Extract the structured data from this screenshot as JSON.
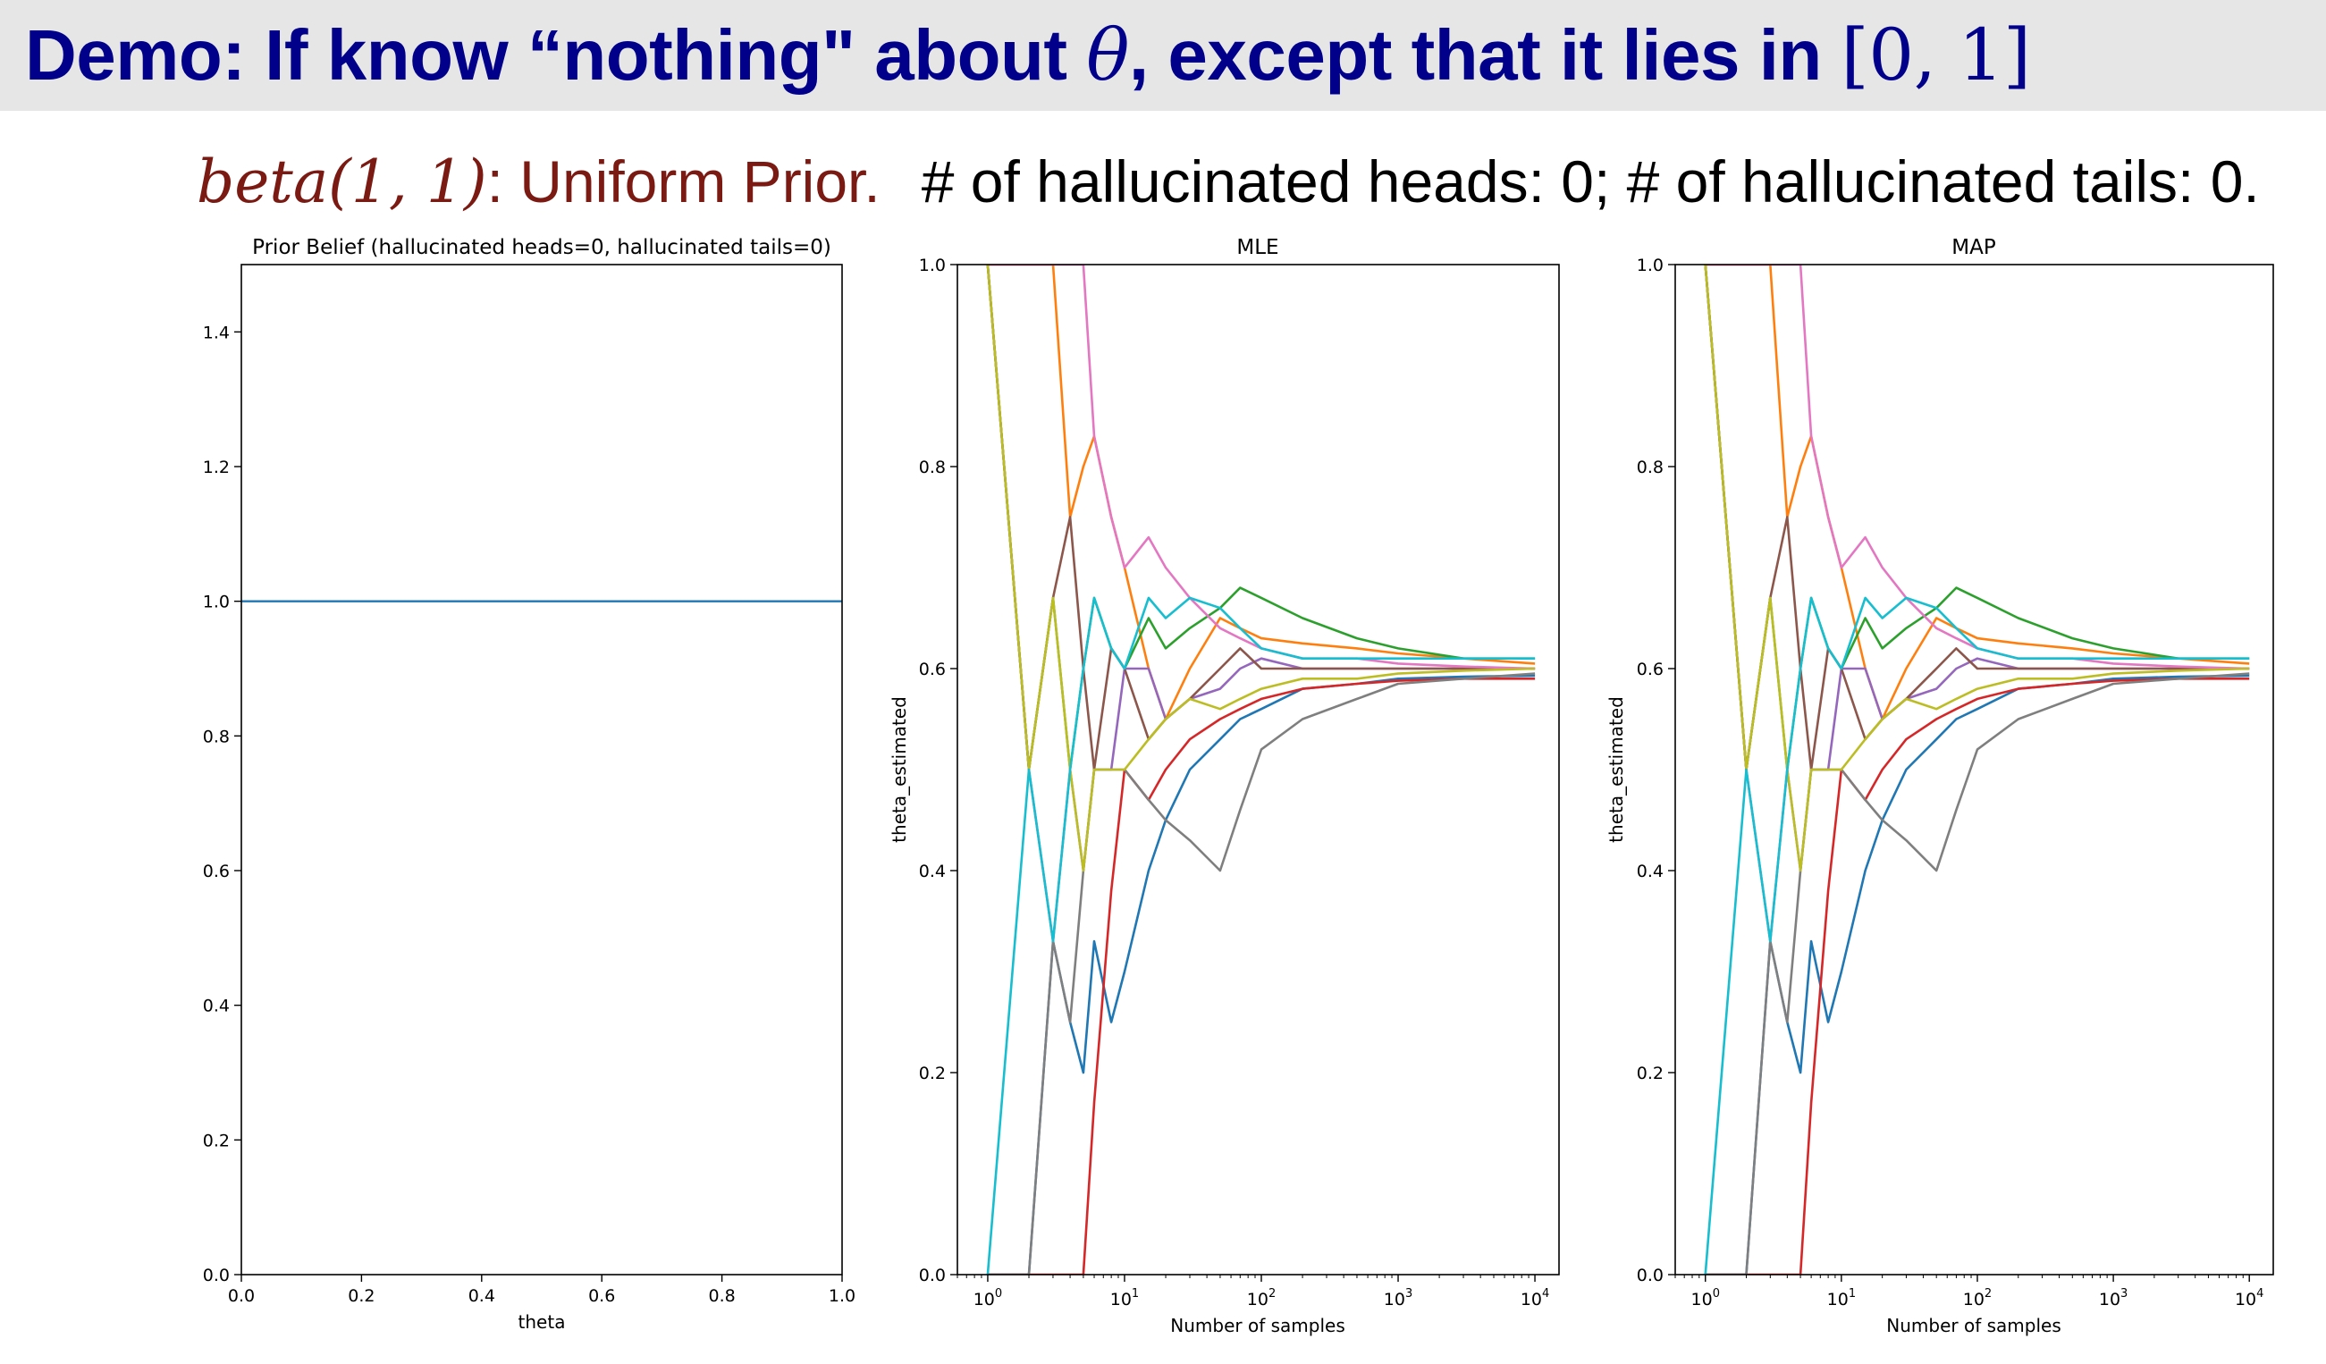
{
  "slide": {
    "title_prefix": "Demo: If know “nothing\" about ",
    "title_theta": "θ",
    "title_middle": ", except that it lies in ",
    "title_interval": "[0, 1]",
    "subtitle_prior_math": "beta(1, 1)",
    "subtitle_prior_text": ": Uniform Prior.",
    "subtitle_counts": "# of hallucinated heads: 0; # of hallucinated tails: 0."
  },
  "colors": {
    "title": "#00008b",
    "prior_text": "#7a1a12",
    "prior_line": "#1f77b4",
    "series_palette": [
      "#1f77b4",
      "#ff7f0e",
      "#2ca02c",
      "#d62728",
      "#9467bd",
      "#8c564b",
      "#e377c2",
      "#7f7f7f",
      "#bcbd22",
      "#17becf"
    ]
  },
  "chart_data": [
    {
      "type": "line",
      "title": "Prior Belief (hallucinated heads=0, hallucinated tails=0)",
      "xlabel": "theta",
      "ylabel": "",
      "xlim": [
        0,
        1
      ],
      "ylim": [
        0,
        1.5
      ],
      "xticks": [
        "0.0",
        "0.2",
        "0.4",
        "0.6",
        "0.8",
        "1.0"
      ],
      "yticks": [
        "0.0",
        "0.2",
        "0.4",
        "0.6",
        "0.8",
        "1.0",
        "1.2",
        "1.4"
      ],
      "grid": false,
      "series": [
        {
          "x": [
            0,
            1
          ],
          "y": [
            1,
            1
          ]
        }
      ]
    },
    {
      "type": "line",
      "title": "MLE",
      "xlabel": "Number of samples",
      "ylabel": "theta_estimated",
      "xscale": "log",
      "xlim": [
        0.6,
        15000
      ],
      "ylim": [
        0,
        1
      ],
      "xticks": [
        "10^0",
        "10^1",
        "10^2",
        "10^3",
        "10^4"
      ],
      "yticks": [
        "0.0",
        "0.2",
        "0.4",
        "0.6",
        "0.8",
        "1.0"
      ],
      "grid": false,
      "x": [
        1,
        2,
        3,
        4,
        5,
        6,
        8,
        10,
        15,
        20,
        30,
        50,
        70,
        100,
        200,
        500,
        1000,
        3000,
        10000
      ],
      "series": [
        {
          "y": [
            0,
            0,
            0.33,
            0.25,
            0.2,
            0.33,
            0.25,
            0.3,
            0.4,
            0.45,
            0.5,
            0.53,
            0.55,
            0.56,
            0.58,
            0.585,
            0.59,
            0.592,
            0.593
          ]
        },
        {
          "y": [
            1,
            1,
            1,
            0.75,
            0.8,
            0.83,
            0.75,
            0.7,
            0.6,
            0.55,
            0.6,
            0.65,
            0.64,
            0.63,
            0.625,
            0.62,
            0.615,
            0.61,
            0.605
          ]
        },
        {
          "y": [
            1,
            0.5,
            0.67,
            0.5,
            0.6,
            0.67,
            0.62,
            0.6,
            0.65,
            0.62,
            0.64,
            0.66,
            0.68,
            0.67,
            0.65,
            0.63,
            0.62,
            0.61,
            0.61
          ]
        },
        {
          "y": [
            0,
            0,
            0,
            0,
            0,
            0.17,
            0.38,
            0.5,
            0.47,
            0.5,
            0.53,
            0.55,
            0.56,
            0.57,
            0.58,
            0.585,
            0.588,
            0.59,
            0.59
          ]
        },
        {
          "y": [
            1,
            0.5,
            0.33,
            0.5,
            0.4,
            0.5,
            0.5,
            0.6,
            0.6,
            0.55,
            0.57,
            0.58,
            0.6,
            0.61,
            0.6,
            0.6,
            0.6,
            0.6,
            0.6
          ]
        },
        {
          "y": [
            1,
            0.5,
            0.67,
            0.75,
            0.6,
            0.5,
            0.62,
            0.6,
            0.53,
            0.55,
            0.57,
            0.6,
            0.62,
            0.6,
            0.6,
            0.6,
            0.6,
            0.6,
            0.6
          ]
        },
        {
          "y": [
            1,
            1,
            1,
            1,
            1,
            0.83,
            0.75,
            0.7,
            0.73,
            0.7,
            0.67,
            0.64,
            0.63,
            0.62,
            0.61,
            0.61,
            0.605,
            0.602,
            0.6
          ]
        },
        {
          "y": [
            0,
            0,
            0.33,
            0.25,
            0.4,
            0.5,
            0.5,
            0.5,
            0.47,
            0.45,
            0.43,
            0.4,
            0.46,
            0.52,
            0.55,
            0.57,
            0.585,
            0.59,
            0.595
          ]
        },
        {
          "y": [
            1,
            0.5,
            0.67,
            0.5,
            0.4,
            0.5,
            0.5,
            0.5,
            0.53,
            0.55,
            0.57,
            0.56,
            0.57,
            0.58,
            0.59,
            0.59,
            0.595,
            0.598,
            0.6
          ]
        },
        {
          "y": [
            0,
            0.5,
            0.33,
            0.5,
            0.6,
            0.67,
            0.62,
            0.6,
            0.67,
            0.65,
            0.67,
            0.66,
            0.64,
            0.62,
            0.61,
            0.61,
            0.61,
            0.61,
            0.61
          ]
        }
      ]
    },
    {
      "type": "line",
      "title": "MAP",
      "xlabel": "Number of samples",
      "ylabel": "theta_estimated",
      "xscale": "log",
      "xlim": [
        0.6,
        15000
      ],
      "ylim": [
        0,
        1
      ],
      "xticks": [
        "10^0",
        "10^1",
        "10^2",
        "10^3",
        "10^4"
      ],
      "yticks": [
        "0.0",
        "0.2",
        "0.4",
        "0.6",
        "0.8",
        "1.0"
      ],
      "grid": false,
      "x": [
        1,
        2,
        3,
        4,
        5,
        6,
        8,
        10,
        15,
        20,
        30,
        50,
        70,
        100,
        200,
        500,
        1000,
        3000,
        10000
      ],
      "series": [
        {
          "y": [
            0,
            0,
            0.33,
            0.25,
            0.2,
            0.33,
            0.25,
            0.3,
            0.4,
            0.45,
            0.5,
            0.53,
            0.55,
            0.56,
            0.58,
            0.585,
            0.59,
            0.592,
            0.593
          ]
        },
        {
          "y": [
            1,
            1,
            1,
            0.75,
            0.8,
            0.83,
            0.75,
            0.7,
            0.6,
            0.55,
            0.6,
            0.65,
            0.64,
            0.63,
            0.625,
            0.62,
            0.615,
            0.61,
            0.605
          ]
        },
        {
          "y": [
            1,
            0.5,
            0.67,
            0.5,
            0.6,
            0.67,
            0.62,
            0.6,
            0.65,
            0.62,
            0.64,
            0.66,
            0.68,
            0.67,
            0.65,
            0.63,
            0.62,
            0.61,
            0.61
          ]
        },
        {
          "y": [
            0,
            0,
            0,
            0,
            0,
            0.17,
            0.38,
            0.5,
            0.47,
            0.5,
            0.53,
            0.55,
            0.56,
            0.57,
            0.58,
            0.585,
            0.588,
            0.59,
            0.59
          ]
        },
        {
          "y": [
            1,
            0.5,
            0.33,
            0.5,
            0.4,
            0.5,
            0.5,
            0.6,
            0.6,
            0.55,
            0.57,
            0.58,
            0.6,
            0.61,
            0.6,
            0.6,
            0.6,
            0.6,
            0.6
          ]
        },
        {
          "y": [
            1,
            0.5,
            0.67,
            0.75,
            0.6,
            0.5,
            0.62,
            0.6,
            0.53,
            0.55,
            0.57,
            0.6,
            0.62,
            0.6,
            0.6,
            0.6,
            0.6,
            0.6,
            0.6
          ]
        },
        {
          "y": [
            1,
            1,
            1,
            1,
            1,
            0.83,
            0.75,
            0.7,
            0.73,
            0.7,
            0.67,
            0.64,
            0.63,
            0.62,
            0.61,
            0.61,
            0.605,
            0.602,
            0.6
          ]
        },
        {
          "y": [
            0,
            0,
            0.33,
            0.25,
            0.4,
            0.5,
            0.5,
            0.5,
            0.47,
            0.45,
            0.43,
            0.4,
            0.46,
            0.52,
            0.55,
            0.57,
            0.585,
            0.59,
            0.595
          ]
        },
        {
          "y": [
            1,
            0.5,
            0.67,
            0.5,
            0.4,
            0.5,
            0.5,
            0.5,
            0.53,
            0.55,
            0.57,
            0.56,
            0.57,
            0.58,
            0.59,
            0.59,
            0.595,
            0.598,
            0.6
          ]
        },
        {
          "y": [
            0,
            0.5,
            0.33,
            0.5,
            0.6,
            0.67,
            0.62,
            0.6,
            0.67,
            0.65,
            0.67,
            0.66,
            0.64,
            0.62,
            0.61,
            0.61,
            0.61,
            0.61,
            0.61
          ]
        }
      ]
    }
  ]
}
